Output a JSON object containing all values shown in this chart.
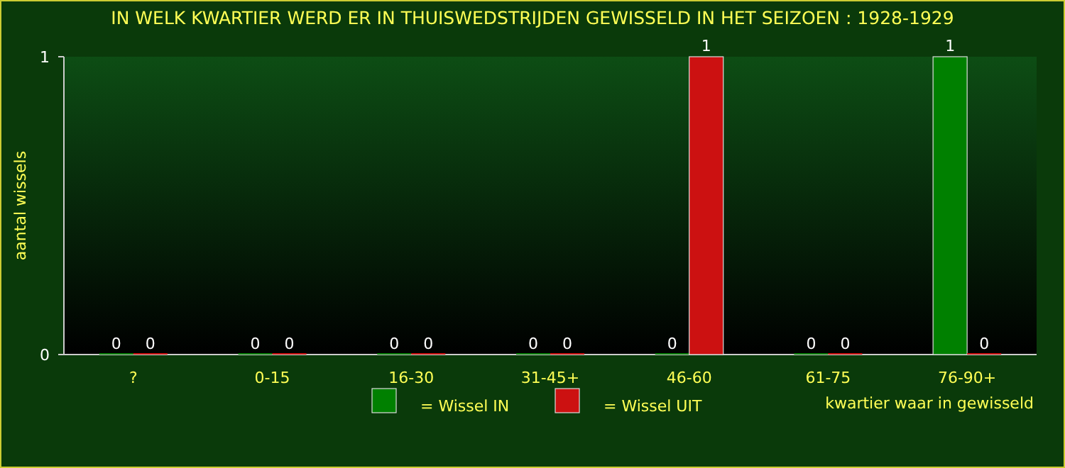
{
  "chart_data": {
    "type": "bar",
    "title": "IN WELK KWARTIER WERD ER IN THUISWEDSTRIJDEN GEWISSELD IN HET SEIZOEN : 1928-1929",
    "xlabel": "kwartier waar in gewisseld",
    "ylabel": "aantal wissels",
    "categories": [
      "?",
      "0-15",
      "16-30",
      "31-45+",
      "46-60",
      "61-75",
      "76-90+"
    ],
    "series": [
      {
        "name": "= Wissel IN",
        "color": "#008000",
        "values": [
          0,
          0,
          0,
          0,
          0,
          0,
          1
        ]
      },
      {
        "name": "= Wissel UIT",
        "color": "#cc1111",
        "values": [
          0,
          0,
          0,
          0,
          1,
          0,
          0
        ]
      }
    ],
    "ylim": [
      0,
      1
    ],
    "yticks": [
      0,
      1
    ],
    "data_labels": true,
    "legend": "bottom",
    "grid": false
  }
}
